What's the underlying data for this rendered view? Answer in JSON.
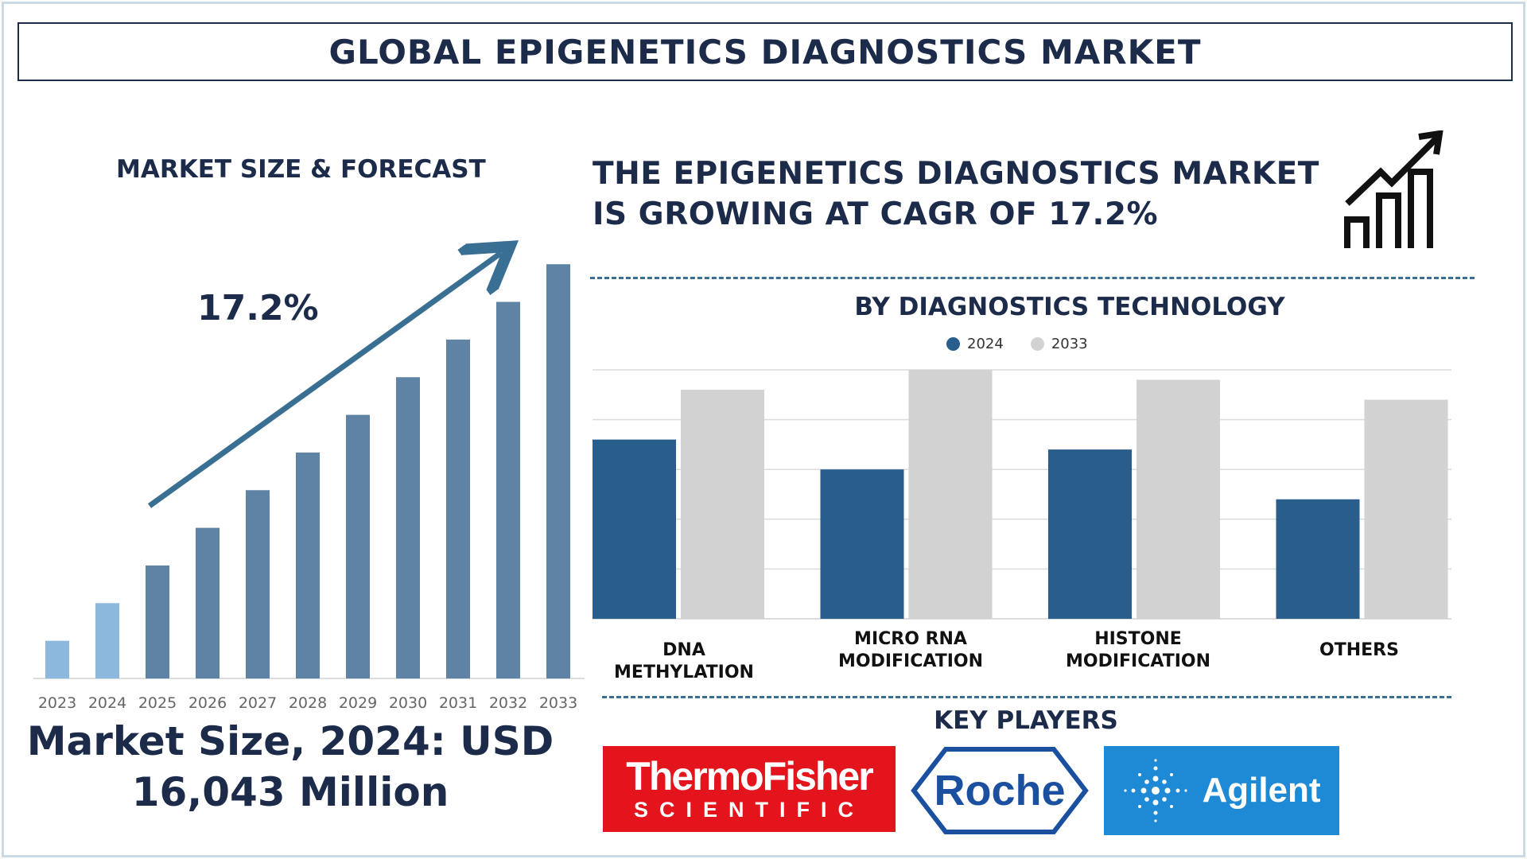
{
  "header": {
    "title": "GLOBAL EPIGENETICS DIAGNOSTICS MARKET"
  },
  "left": {
    "subtitle": "MARKET SIZE & FORECAST",
    "cagr_label": "17.2%",
    "market_size_line1": "Market Size, 2024: USD",
    "market_size_line2": "16,043 Million"
  },
  "right": {
    "headline_line1": "THE EPIGENETICS DIAGNOSTICS MARKET",
    "headline_line2": "IS GROWING AT CAGR OF 17.2%",
    "section_title": "BY DIAGNOSTICS TECHNOLOGY",
    "key_players_title": "KEY PLAYERS"
  },
  "key_players": [
    {
      "name": "Thermo Fisher Scientific",
      "logo_line1": "ThermoFisher",
      "logo_line2": "SCIENTIFIC",
      "color": "#e3141b"
    },
    {
      "name": "Roche",
      "logo_text": "Roche",
      "color": "#1b4fa0"
    },
    {
      "name": "Agilent",
      "logo_text": "Agilent",
      "color": "#1e8ad6"
    }
  ],
  "icons": [
    "growth-chart-icon",
    "roche-hexagon-icon",
    "agilent-spark-icon"
  ],
  "colors": {
    "navy": "#1c2b4a",
    "bar_2024": "#285d8c",
    "bar_2033": "#d2d2d2",
    "forecast_bar": "#5f83a5",
    "early_bar": "#8db8de"
  },
  "chart_data": [
    {
      "type": "bar",
      "title": "MARKET SIZE & FORECAST",
      "categories": [
        "2023",
        "2024",
        "2025",
        "2026",
        "2027",
        "2028",
        "2029",
        "2030",
        "2031",
        "2032",
        "2033"
      ],
      "values": [
        1,
        2,
        3,
        4,
        5,
        6,
        7,
        8,
        9,
        10,
        11
      ],
      "ylim": [
        0,
        11.3
      ],
      "annotation": "17.2%",
      "grid": false
    },
    {
      "type": "bar",
      "title": "BY DIAGNOSTICS TECHNOLOGY",
      "categories": [
        "DNA METHYLATION",
        "MICRO RNA MODIFICATION",
        "HISTONE MODIFICATION",
        "OTHERS"
      ],
      "series": [
        {
          "name": "2024",
          "values": [
            3.6,
            3.0,
            3.4,
            2.4
          ]
        },
        {
          "name": "2033",
          "values": [
            4.6,
            5.0,
            4.8,
            4.4
          ]
        }
      ],
      "ylim": [
        0,
        5
      ],
      "grid": true,
      "legend": "top"
    }
  ]
}
